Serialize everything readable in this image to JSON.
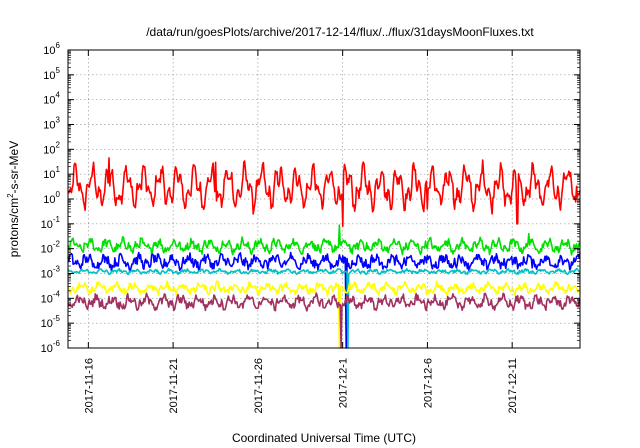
{
  "chart_data": {
    "type": "line",
    "title": "/data/run/goesPlots/archive/2017-12-14/flux/../flux/31daysMoonFluxes.txt",
    "xlabel": "Coordinated Universal Time (UTC)",
    "ylabel": "protons/cm2-s-sr-MeV",
    "ylabel_parts": {
      "base": "protons/cm",
      "sup": "2",
      "rest": "-s-sr-MeV"
    },
    "x_ticks": [
      "2017-11-16",
      "2017-11-21",
      "2017-11-26",
      "2017-12-1",
      "2017-12-6",
      "2017-12-11"
    ],
    "x_tick_day_offsets": [
      2,
      7,
      12,
      17,
      22,
      27
    ],
    "xlim_days": [
      0.8,
      31.0
    ],
    "yscale": "log",
    "ylim": [
      1e-06,
      1000000.0
    ],
    "y_tick_exponents": [
      -6,
      -5,
      -4,
      -3,
      -2,
      -1,
      0,
      1,
      2,
      3,
      4,
      5,
      6
    ],
    "y_tick_base": "10",
    "grid": true,
    "series": [
      {
        "color": "#ff0000",
        "typical": 3.0,
        "amp_log": 0.55,
        "noise_log": 0.25,
        "spikes": [
          {
            "day": 3.2,
            "value": 45
          },
          {
            "day": 9.5,
            "value": 30
          },
          {
            "day": 17.0,
            "value": 0.08
          },
          {
            "day": 22.0,
            "value": 0.4
          },
          {
            "day": 27.3,
            "value": 0.1
          }
        ]
      },
      {
        "color": "#00e000",
        "typical": 0.013,
        "amp_log": 0.15,
        "noise_log": 0.15,
        "spikes": [
          {
            "day": 16.8,
            "value": 0.09
          },
          {
            "day": 28.0,
            "value": 0.04
          }
        ]
      },
      {
        "color": "#0000ff",
        "typical": 0.003,
        "amp_log": 0.15,
        "noise_log": 0.18,
        "spikes": [
          {
            "day": 17.2,
            "value": 1e-06
          }
        ]
      },
      {
        "color": "#00c0c0",
        "typical": 0.0012,
        "amp_log": 0.05,
        "noise_log": 0.05,
        "spikes": [
          {
            "day": 17.3,
            "value": 1e-06
          }
        ]
      },
      {
        "color": "#ffff00",
        "typical": 0.00025,
        "amp_log": 0.12,
        "noise_log": 0.12,
        "spikes": [
          {
            "day": 16.8,
            "value": 1e-06
          }
        ]
      },
      {
        "color": "#a03060",
        "typical": 7e-05,
        "amp_log": 0.15,
        "noise_log": 0.15,
        "spikes": [
          {
            "day": 16.9,
            "value": 1e-06
          }
        ]
      }
    ]
  }
}
